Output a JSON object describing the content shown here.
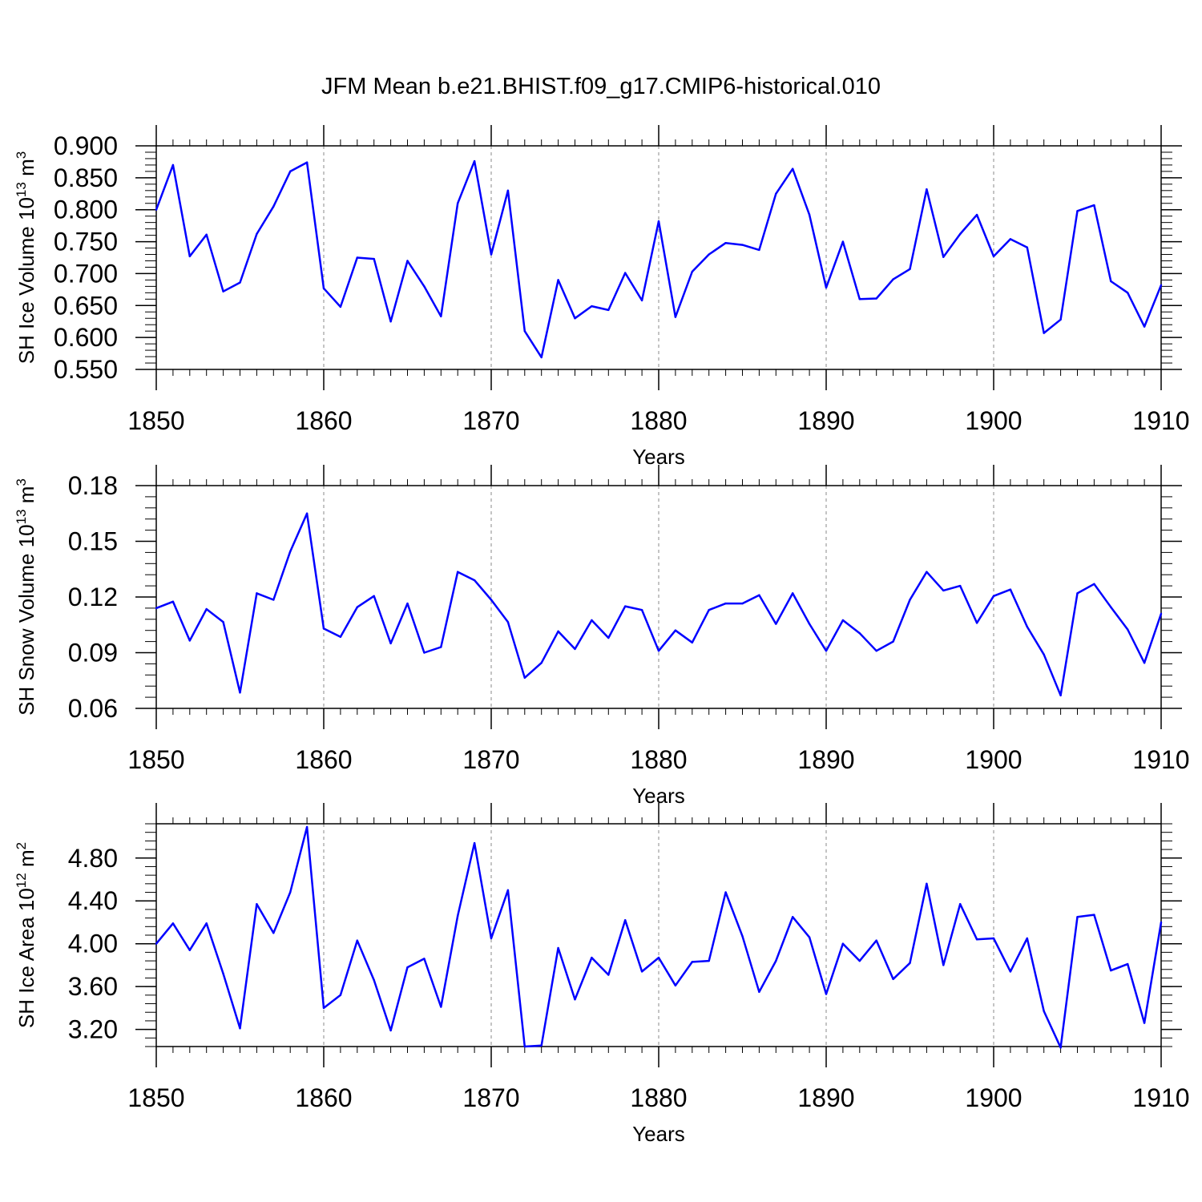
{
  "title": "JFM Mean b.e21.BHIST.f09_g17.CMIP6-historical.010",
  "colors": {
    "series": "#0000ff",
    "axis": "#000000",
    "grid": "#888888"
  },
  "chart_data": [
    {
      "type": "line",
      "ylabel": "SH Ice Volume 10",
      "ylabel_exponent": "13",
      "ylabel_unit": "m",
      "ylabel_unit_exponent": "3",
      "xlabel": "Years",
      "xlim": [
        1850,
        1910
      ],
      "ylim": [
        0.55,
        0.9
      ],
      "x_ticks": [
        "1850",
        "1860",
        "1870",
        "1880",
        "1890",
        "1900",
        "1910"
      ],
      "y_ticks": [
        "0.550",
        "0.600",
        "0.650",
        "0.700",
        "0.750",
        "0.800",
        "0.850",
        "0.900"
      ],
      "y_tick_values": [
        0.55,
        0.6,
        0.65,
        0.7,
        0.75,
        0.8,
        0.85,
        0.9
      ],
      "x": [
        1850,
        1851,
        1852,
        1853,
        1854,
        1855,
        1856,
        1857,
        1858,
        1859,
        1860,
        1861,
        1862,
        1863,
        1864,
        1865,
        1866,
        1867,
        1868,
        1869,
        1870,
        1871,
        1872,
        1873,
        1874,
        1875,
        1876,
        1877,
        1878,
        1879,
        1880,
        1881,
        1882,
        1883,
        1884,
        1885,
        1886,
        1887,
        1888,
        1889,
        1890,
        1891,
        1892,
        1893,
        1894,
        1895,
        1896,
        1897,
        1898,
        1899,
        1900,
        1901,
        1902,
        1903,
        1904,
        1905,
        1906,
        1907,
        1908,
        1909,
        1910
      ],
      "values": [
        0.8,
        0.87,
        0.727,
        0.761,
        0.672,
        0.686,
        0.762,
        0.805,
        0.86,
        0.874,
        0.677,
        0.648,
        0.725,
        0.723,
        0.625,
        0.72,
        0.68,
        0.633,
        0.81,
        0.876,
        0.73,
        0.83,
        0.61,
        0.569,
        0.69,
        0.63,
        0.649,
        0.643,
        0.701,
        0.658,
        0.782,
        0.632,
        0.703,
        0.73,
        0.748,
        0.745,
        0.737,
        0.825,
        0.864,
        0.792,
        0.678,
        0.75,
        0.66,
        0.661,
        0.691,
        0.707,
        0.832,
        0.726,
        0.762,
        0.792,
        0.727,
        0.754,
        0.741,
        0.607,
        0.628,
        0.798,
        0.807,
        0.688,
        0.67,
        0.617,
        0.682
      ]
    },
    {
      "type": "line",
      "ylabel": "SH Snow Volume 10",
      "ylabel_exponent": "13",
      "ylabel_unit": "m",
      "ylabel_unit_exponent": "3",
      "xlabel": "Years",
      "xlim": [
        1850,
        1910
      ],
      "ylim": [
        0.06,
        0.18
      ],
      "x_ticks": [
        "1850",
        "1860",
        "1870",
        "1880",
        "1890",
        "1900",
        "1910"
      ],
      "y_ticks": [
        "0.06",
        "0.09",
        "0.12",
        "0.15",
        "0.18"
      ],
      "y_tick_values": [
        0.06,
        0.09,
        0.12,
        0.15,
        0.18
      ],
      "x": [
        1850,
        1851,
        1852,
        1853,
        1854,
        1855,
        1856,
        1857,
        1858,
        1859,
        1860,
        1861,
        1862,
        1863,
        1864,
        1865,
        1866,
        1867,
        1868,
        1869,
        1870,
        1871,
        1872,
        1873,
        1874,
        1875,
        1876,
        1877,
        1878,
        1879,
        1880,
        1881,
        1882,
        1883,
        1884,
        1885,
        1886,
        1887,
        1888,
        1889,
        1890,
        1891,
        1892,
        1893,
        1894,
        1895,
        1896,
        1897,
        1898,
        1899,
        1900,
        1901,
        1902,
        1903,
        1904,
        1905,
        1906,
        1907,
        1908,
        1909,
        1910
      ],
      "values": [
        0.114,
        0.1175,
        0.0965,
        0.1135,
        0.1065,
        0.0685,
        0.122,
        0.1185,
        0.1445,
        0.165,
        0.103,
        0.0985,
        0.1145,
        0.1205,
        0.095,
        0.1165,
        0.09,
        0.093,
        0.1335,
        0.129,
        0.1185,
        0.1065,
        0.0765,
        0.0845,
        0.1015,
        0.092,
        0.1075,
        0.098,
        0.115,
        0.113,
        0.091,
        0.102,
        0.0955,
        0.113,
        0.1165,
        0.1165,
        0.121,
        0.1055,
        0.122,
        0.1055,
        0.091,
        0.1075,
        0.1005,
        0.091,
        0.096,
        0.1185,
        0.1335,
        0.1235,
        0.126,
        0.106,
        0.1205,
        0.124,
        0.104,
        0.089,
        0.067,
        0.122,
        0.127,
        0.1145,
        0.1025,
        0.0845,
        0.111
      ]
    },
    {
      "type": "line",
      "ylabel": "SH Ice Area 10",
      "ylabel_exponent": "12",
      "ylabel_unit": "m",
      "ylabel_unit_exponent": "2",
      "xlabel": "Years",
      "xlim": [
        1850,
        1910
      ],
      "ylim": [
        3.04,
        5.12
      ],
      "x_ticks": [
        "1850",
        "1860",
        "1870",
        "1880",
        "1890",
        "1900",
        "1910"
      ],
      "y_ticks": [
        "3.20",
        "3.60",
        "4.00",
        "4.40",
        "4.80"
      ],
      "y_tick_values": [
        3.2,
        3.6,
        4.0,
        4.4,
        4.8
      ],
      "x": [
        1850,
        1851,
        1852,
        1853,
        1854,
        1855,
        1856,
        1857,
        1858,
        1859,
        1860,
        1861,
        1862,
        1863,
        1864,
        1865,
        1866,
        1867,
        1868,
        1869,
        1870,
        1871,
        1872,
        1873,
        1874,
        1875,
        1876,
        1877,
        1878,
        1879,
        1880,
        1881,
        1882,
        1883,
        1884,
        1885,
        1886,
        1887,
        1888,
        1889,
        1890,
        1891,
        1892,
        1893,
        1894,
        1895,
        1896,
        1897,
        1898,
        1899,
        1900,
        1901,
        1902,
        1903,
        1904,
        1905,
        1906,
        1907,
        1908,
        1909,
        1910
      ],
      "values": [
        4.0,
        4.19,
        3.94,
        4.19,
        3.72,
        3.21,
        4.37,
        4.1,
        4.48,
        5.09,
        3.4,
        3.52,
        4.03,
        3.66,
        3.19,
        3.78,
        3.86,
        3.41,
        4.26,
        4.94,
        4.05,
        4.5,
        3.04,
        3.05,
        3.96,
        3.48,
        3.87,
        3.71,
        4.22,
        3.74,
        3.87,
        3.61,
        3.83,
        3.84,
        4.48,
        4.07,
        3.55,
        3.84,
        4.25,
        4.06,
        3.53,
        4.0,
        3.84,
        4.03,
        3.67,
        3.82,
        4.56,
        3.8,
        4.37,
        4.04,
        4.05,
        3.74,
        4.05,
        3.37,
        3.03,
        4.25,
        4.27,
        3.75,
        3.81,
        3.26,
        4.2
      ]
    }
  ]
}
